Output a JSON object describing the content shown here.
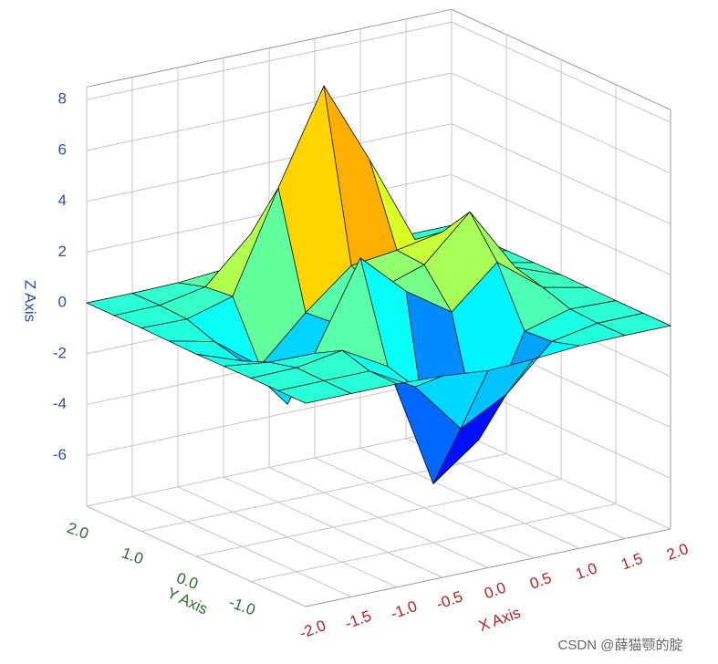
{
  "chart_data": {
    "type": "surface",
    "x": [
      -2,
      -1.5,
      -1,
      -0.5,
      0,
      0.5,
      1,
      1.5,
      2
    ],
    "y": [
      -2,
      -1.5,
      -1,
      -0.5,
      0,
      0.5,
      1,
      1.5,
      2
    ],
    "z": [
      [
        0,
        0,
        0,
        -0.07,
        -0.24,
        -0.17,
        -0.03,
        0,
        0
      ],
      [
        0,
        0.01,
        0.01,
        -0.99,
        -3.02,
        -2.05,
        -0.35,
        -0.01,
        0
      ],
      [
        0,
        0.03,
        0.33,
        -0.68,
        -5.68,
        -4.32,
        -0.44,
        0.05,
        0
      ],
      [
        -0.02,
        -0.25,
        -0.28,
        3.09,
        1.4,
        0.2,
        1.78,
        0.41,
        0.02
      ],
      [
        -0.04,
        -0.69,
        -2.77,
        0.06,
        0.98,
        1.57,
        3.27,
        0.7,
        0.03
      ],
      [
        -0.02,
        -0.42,
        -1.76,
        -0.05,
        1.42,
        1.65,
        1.99,
        0.4,
        0.02
      ],
      [
        0,
        -0.03,
        0.48,
        4.37,
        8.0,
        4.72,
        1.19,
        0.12,
        0
      ],
      [
        0,
        0.02,
        0.36,
        2.07,
        3.65,
        2.09,
        0.41,
        0.03,
        0
      ],
      [
        0,
        0,
        0.03,
        0.17,
        0.3,
        0.17,
        0.03,
        0,
        0
      ]
    ],
    "colormap": "jet",
    "xlabel": "X Axis",
    "ylabel": "Y Axis",
    "zlabel": "Z Axis",
    "xlabel_color": "#b22222",
    "ylabel_color": "#2e6b2e",
    "zlabel_color": "#2a4ea8",
    "xlim": [
      -2,
      2
    ],
    "ylim": [
      -2,
      2
    ],
    "zlim": [
      -8,
      8.5
    ],
    "xticks": [
      {
        "value": -2,
        "label": "-2.0"
      },
      -1.5,
      {
        "value": -1,
        "label": "-1.0"
      },
      -0.5,
      {
        "value": 0,
        "label": "0.0"
      },
      0.5,
      {
        "value": 1,
        "label": "1.0"
      },
      1.5,
      {
        "value": 2,
        "label": "2.0"
      }
    ],
    "yticks": [
      {
        "value": -1,
        "label": "-1.0"
      },
      {
        "value": 0,
        "label": "0.0"
      },
      {
        "value": 1,
        "label": "1.0"
      },
      {
        "value": 2,
        "label": "2.0"
      }
    ],
    "zticks": [
      -6,
      -4,
      -2,
      0,
      2,
      4,
      6,
      8
    ],
    "grid": true
  },
  "watermark": "CSDN @薛猫颚的腚"
}
